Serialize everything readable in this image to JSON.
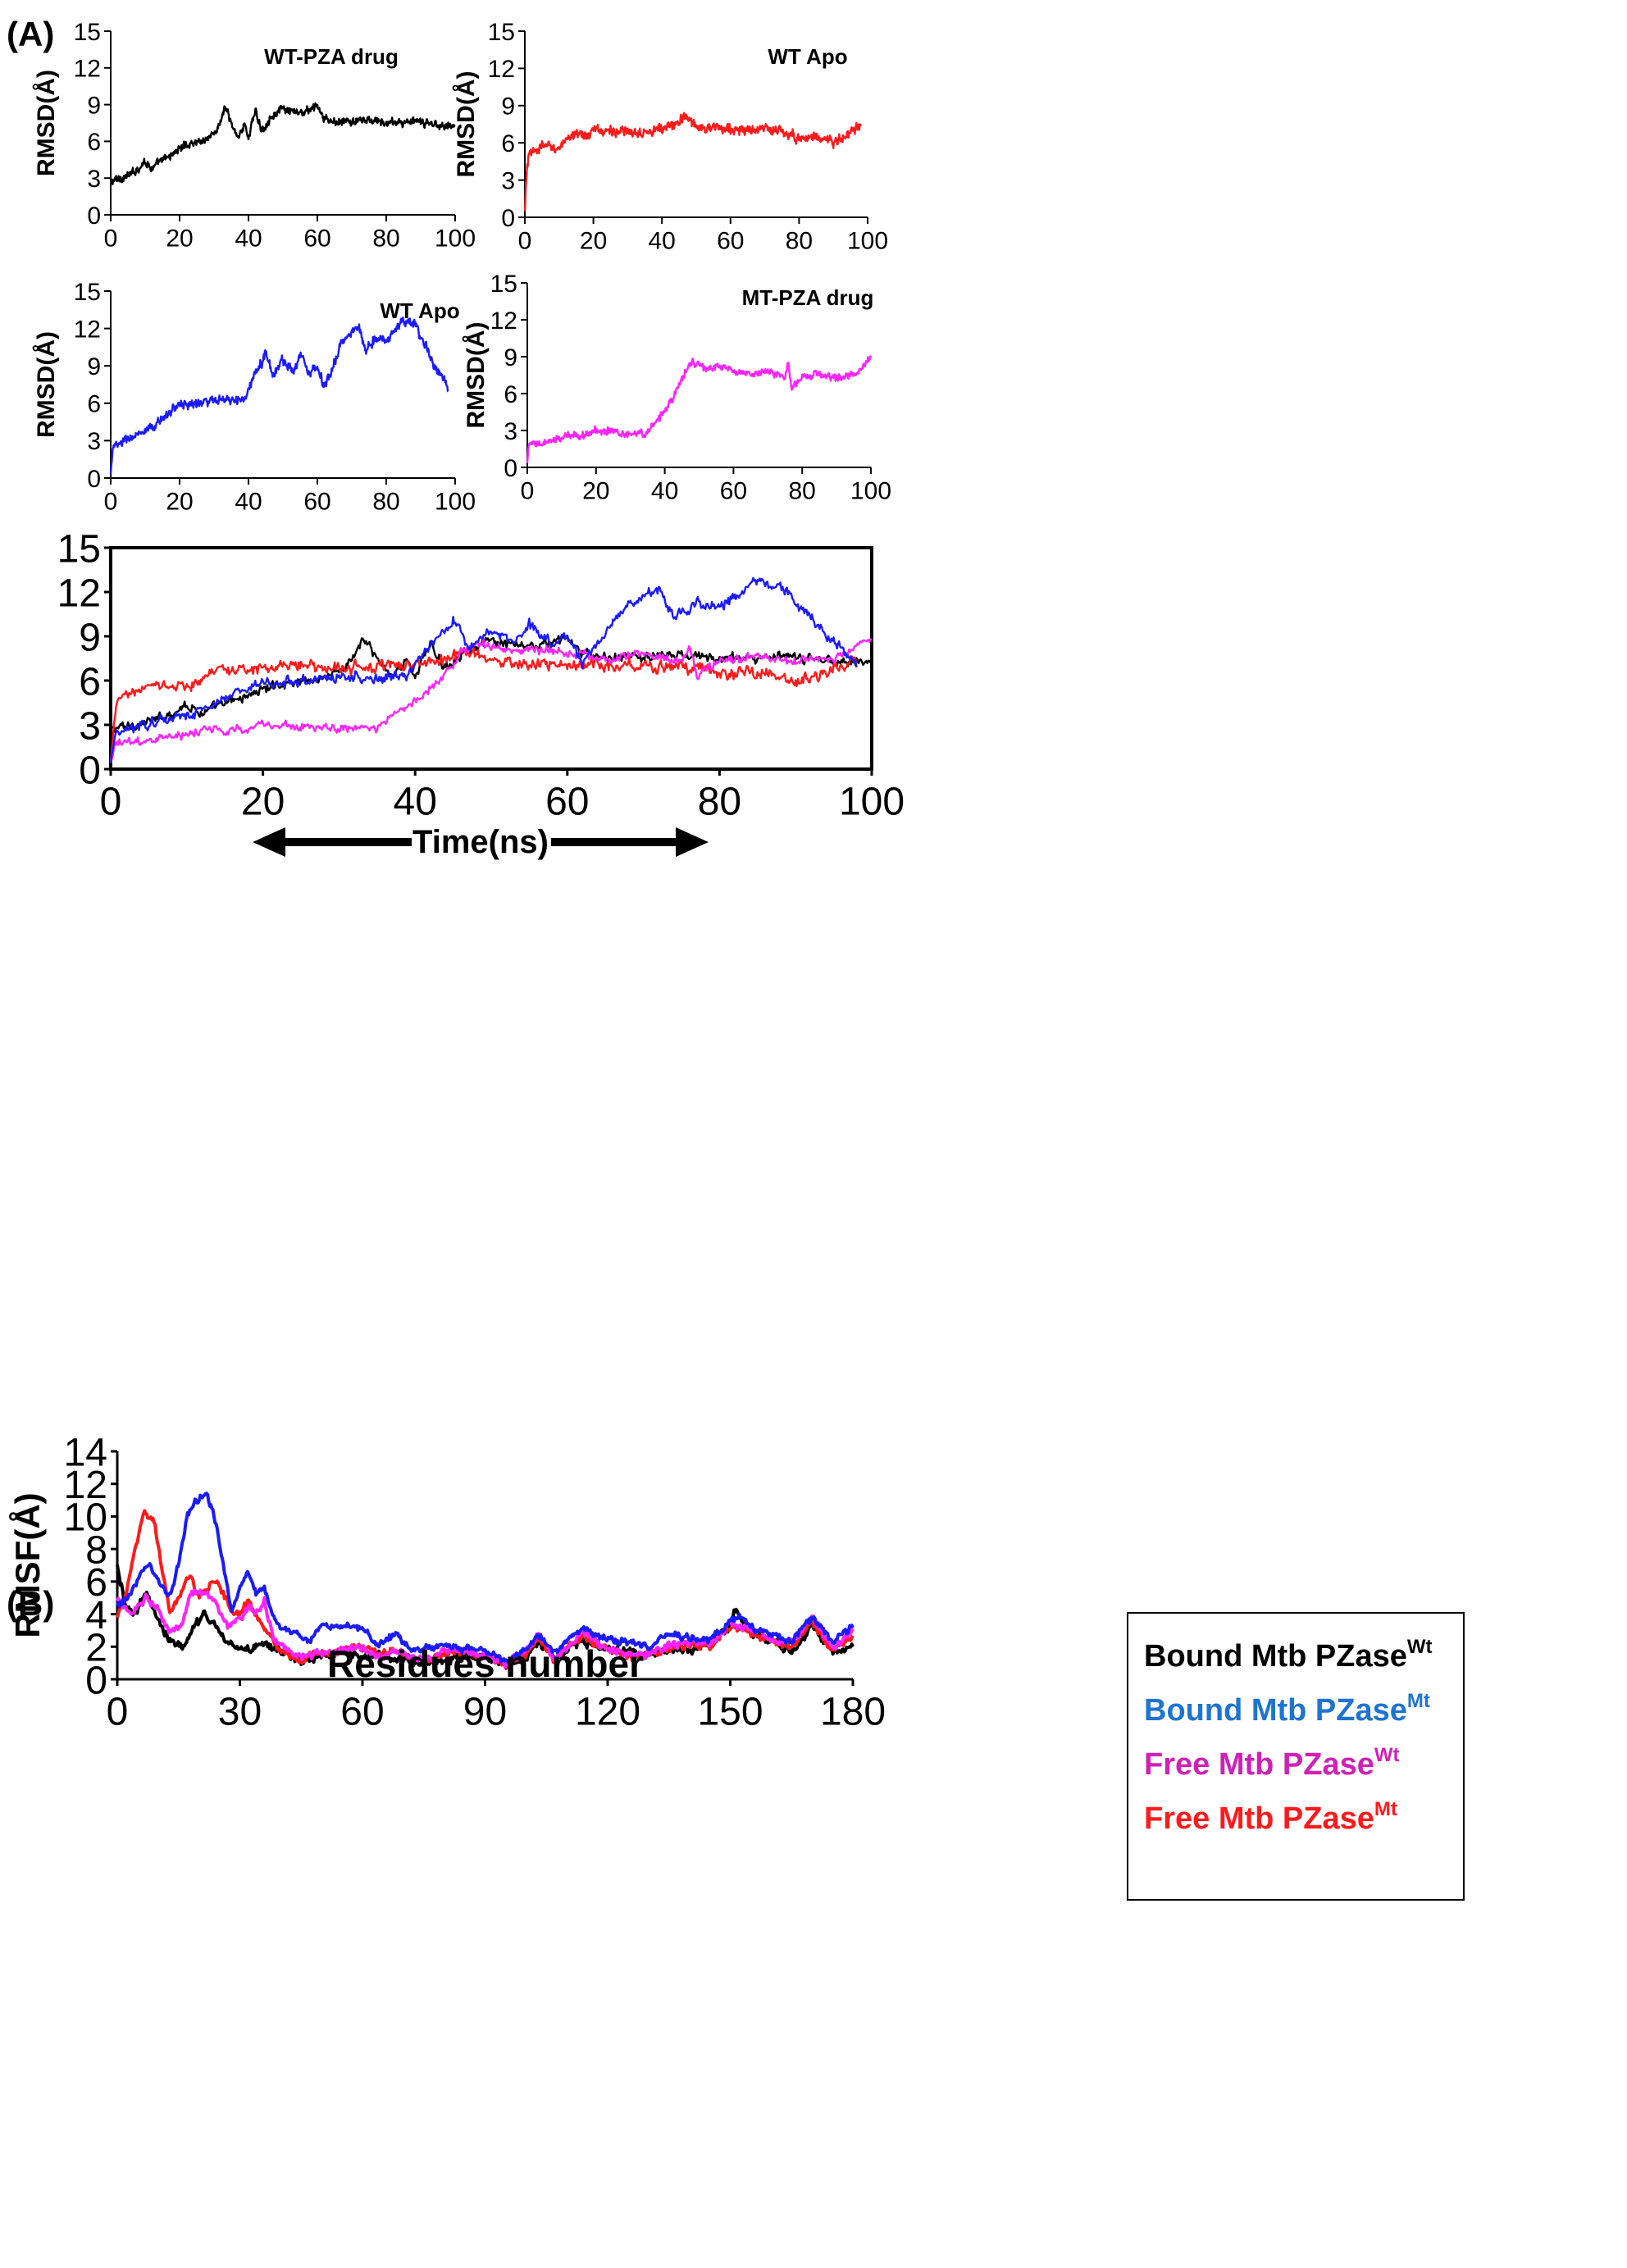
{
  "panels": {
    "a": "(A)",
    "b": "(B)"
  },
  "colors": {
    "black": "#000000",
    "red": "#ff1a1a",
    "blue": "#1a1aff",
    "magenta": "#ff22ff",
    "legend_blue": "#1e74d2",
    "legend_magenta": "#d020b8",
    "legend_red": "#ff1a1a"
  },
  "chart_data": [
    {
      "id": "rmsd-wt-pza",
      "type": "line",
      "annotation": "WT-PZA drug",
      "ylabel": "RMSD(Å)",
      "xlim": [
        0,
        100
      ],
      "ylim": [
        0,
        15
      ],
      "xticks": [
        "0",
        "20",
        "40",
        "60",
        "80",
        "100"
      ],
      "yticks": [
        "0",
        "3",
        "6",
        "9",
        "12",
        "15"
      ],
      "series": [
        {
          "color": "#000000",
          "noise": 0.45,
          "x": [
            0,
            3,
            6,
            9,
            10,
            12,
            15,
            18,
            21,
            24,
            27,
            30,
            32,
            33,
            34,
            35,
            36,
            37,
            38,
            39,
            40,
            41,
            42,
            43,
            44,
            45,
            46,
            48,
            50,
            52,
            55,
            58,
            60,
            62,
            65,
            70,
            75,
            80,
            85,
            90,
            95,
            100
          ],
          "y": [
            2.7,
            3.0,
            3.3,
            4.1,
            4.4,
            3.8,
            4.4,
            5.0,
            5.6,
            5.9,
            6.1,
            6.6,
            7.6,
            8.8,
            8.2,
            7.4,
            6.8,
            6.5,
            6.9,
            7.3,
            6.3,
            7.5,
            8.4,
            7.6,
            6.9,
            7.3,
            7.9,
            8.3,
            8.6,
            8.4,
            8.3,
            8.6,
            8.9,
            7.8,
            7.6,
            7.6,
            7.7,
            7.5,
            7.6,
            7.5,
            7.4,
            7.2
          ]
        }
      ]
    },
    {
      "id": "rmsd-wt-apo-red",
      "type": "line",
      "annotation": "WT Apo",
      "ylabel": "RMSD(Å)",
      "xlim": [
        0,
        100
      ],
      "ylim": [
        0,
        15
      ],
      "xticks": [
        "0",
        "20",
        "40",
        "60",
        "80",
        "100"
      ],
      "yticks": [
        "0",
        "3",
        "6",
        "9",
        "12",
        "15"
      ],
      "series": [
        {
          "color": "#ff1a1a",
          "noise": 0.55,
          "x": [
            0,
            0.5,
            1,
            3,
            6,
            10,
            13,
            15,
            18,
            20,
            25,
            30,
            35,
            40,
            44,
            47,
            50,
            55,
            60,
            65,
            70,
            75,
            80,
            85,
            88,
            90,
            93,
            95,
            97,
            98
          ],
          "y": [
            0.3,
            3.5,
            4.8,
            5.4,
            5.8,
            5.6,
            6.2,
            7.0,
            6.5,
            7.0,
            7.0,
            6.8,
            7.0,
            7.1,
            7.5,
            8.1,
            7.4,
            7.2,
            7.1,
            7.0,
            7.1,
            6.9,
            6.4,
            6.5,
            6.3,
            6.0,
            6.4,
            6.8,
            7.3,
            7.4
          ]
        }
      ]
    },
    {
      "id": "rmsd-wt-apo-blue",
      "type": "line",
      "annotation": "WT Apo",
      "ylabel": "RMSD(Å)",
      "xlim": [
        0,
        100
      ],
      "ylim": [
        0,
        15
      ],
      "xticks": [
        "0",
        "20",
        "40",
        "60",
        "80",
        "100"
      ],
      "yticks": [
        "0",
        "3",
        "6",
        "9",
        "12",
        "15"
      ],
      "series": [
        {
          "color": "#1a1aff",
          "noise": 0.5,
          "x": [
            0,
            0.5,
            3,
            6,
            10,
            13,
            16,
            20,
            25,
            30,
            35,
            39,
            41,
            44,
            45,
            47,
            50,
            53,
            55,
            58,
            60,
            62,
            64,
            67,
            70,
            72,
            74,
            77,
            80,
            83,
            85,
            87,
            88,
            90,
            92,
            94,
            96,
            98
          ],
          "y": [
            0.2,
            2.4,
            2.8,
            3.3,
            3.6,
            4.2,
            5.1,
            5.9,
            6.0,
            6.2,
            6.2,
            6.3,
            7.8,
            9.3,
            10.3,
            8.2,
            9.5,
            8.6,
            9.9,
            8.4,
            9.1,
            7.3,
            8.5,
            10.8,
            11.7,
            12.2,
            10.3,
            11.3,
            11.0,
            12.0,
            12.7,
            12.3,
            12.6,
            11.2,
            10.4,
            8.9,
            8.3,
            7.0
          ]
        }
      ]
    },
    {
      "id": "rmsd-mt-pza",
      "type": "line",
      "annotation": "MT-PZA drug",
      "ylabel": "RMSD(Å)",
      "xlim": [
        0,
        100
      ],
      "ylim": [
        0,
        15
      ],
      "xticks": [
        "0",
        "20",
        "40",
        "60",
        "80",
        "100"
      ],
      "yticks": [
        "0",
        "3",
        "6",
        "9",
        "12",
        "15"
      ],
      "series": [
        {
          "color": "#ff22ff",
          "noise": 0.4,
          "x": [
            0,
            0.5,
            3,
            6,
            10,
            13,
            16,
            20,
            25,
            30,
            35,
            37,
            40,
            42,
            44,
            46,
            48,
            50,
            53,
            56,
            60,
            65,
            70,
            75,
            76,
            77,
            80,
            85,
            90,
            95,
            100
          ],
          "y": [
            0.3,
            1.8,
            1.9,
            2.0,
            2.4,
            2.7,
            2.6,
            3.0,
            2.9,
            2.7,
            2.8,
            3.6,
            4.6,
            5.4,
            6.5,
            7.9,
            8.5,
            8.3,
            8.0,
            8.2,
            7.8,
            7.5,
            7.9,
            7.3,
            8.4,
            6.3,
            7.3,
            7.6,
            7.3,
            7.5,
            8.9
          ]
        }
      ]
    },
    {
      "id": "rmsd-combined",
      "type": "line",
      "xlabel": "Time(ns)",
      "xlim": [
        0,
        100
      ],
      "ylim": [
        0,
        15
      ],
      "xticks": [
        "0",
        "20",
        "40",
        "60",
        "80",
        "100"
      ],
      "yticks": [
        "0",
        "3",
        "6",
        "9",
        "12",
        "15"
      ],
      "series": [
        {
          "color": "#000000",
          "ref": 0
        },
        {
          "color": "#ff1a1a",
          "ref": 1
        },
        {
          "color": "#ff22ff",
          "ref": 3
        },
        {
          "color": "#1a1aff",
          "ref": 2
        }
      ]
    },
    {
      "id": "rmsf",
      "type": "line",
      "xlabel": "Residues number",
      "ylabel": "RMSF(Å)",
      "xlim": [
        0,
        180
      ],
      "ylim": [
        0,
        14
      ],
      "xticks": [
        "0",
        "30",
        "60",
        "90",
        "120",
        "150",
        "180"
      ],
      "yticks": [
        "0",
        "2",
        "4",
        "6",
        "8",
        "10",
        "12",
        "14"
      ],
      "legend": [
        {
          "label": "Bound Mtb PZase",
          "sup": "Wt",
          "color": "#000000"
        },
        {
          "label": "Bound Mtb PZase",
          "sup": "Mt",
          "color": "#1e74d2"
        },
        {
          "label": "Free Mtb PZase",
          "sup": "Wt",
          "color": "#d020b8"
        },
        {
          "label": "Free Mtb PZase",
          "sup": "Mt",
          "color": "#ff1a1a"
        }
      ],
      "series": [
        {
          "color": "#000000",
          "noise": 0.35,
          "x": [
            0,
            2,
            4,
            7,
            10,
            13,
            16,
            19,
            21,
            24,
            27,
            30,
            33,
            36,
            40,
            45,
            50,
            55,
            60,
            65,
            68,
            72,
            76,
            80,
            85,
            90,
            95,
            100,
            103,
            107,
            110,
            114,
            118,
            122,
            126,
            130,
            135,
            140,
            145,
            150,
            151,
            155,
            160,
            165,
            170,
            175,
            180
          ],
          "y": [
            6.8,
            4.6,
            3.8,
            5.3,
            3.6,
            2.3,
            2.0,
            3.2,
            4.0,
            3.2,
            2.2,
            2.0,
            1.8,
            2.2,
            1.6,
            1.1,
            1.5,
            1.6,
            1.5,
            1.4,
            1.2,
            1.1,
            0.8,
            1.3,
            1.4,
            1.5,
            0.9,
            1.3,
            2.4,
            1.2,
            1.8,
            2.4,
            1.9,
            1.9,
            1.6,
            1.5,
            1.8,
            1.9,
            2.3,
            3.2,
            4.4,
            2.8,
            2.3,
            1.7,
            3.3,
            1.5,
            2.1
          ]
        },
        {
          "color": "#ff1a1a",
          "noise": 0.3,
          "x": [
            0,
            2,
            4,
            6,
            7,
            9,
            11,
            13,
            15,
            17,
            18,
            20,
            22,
            24,
            26,
            28,
            30,
            32,
            34,
            36,
            40,
            44,
            50,
            55,
            60,
            65,
            68,
            72,
            76,
            80,
            85,
            90,
            95,
            100,
            103,
            107,
            110,
            114,
            118,
            122,
            126,
            130,
            135,
            140,
            145,
            150,
            155,
            160,
            165,
            170,
            175,
            180
          ],
          "y": [
            3.8,
            5.2,
            7.5,
            9.8,
            10.2,
            9.7,
            6.8,
            4.1,
            4.8,
            6.1,
            6.2,
            5.0,
            5.5,
            6.1,
            5.3,
            4.1,
            4.0,
            4.8,
            3.9,
            3.1,
            1.8,
            1.2,
            1.6,
            1.7,
            2.0,
            1.5,
            1.9,
            1.2,
            1.2,
            1.6,
            1.7,
            1.4,
            0.9,
            1.5,
            2.6,
            1.1,
            1.9,
            2.6,
            2.0,
            1.8,
            1.3,
            1.5,
            1.9,
            2.1,
            2.0,
            3.3,
            2.8,
            2.4,
            1.8,
            3.6,
            1.7,
            2.7
          ]
        },
        {
          "color": "#ff22ff",
          "noise": 0.3,
          "x": [
            0,
            2,
            4,
            7,
            10,
            13,
            16,
            18,
            20,
            22,
            24,
            27,
            30,
            32,
            34,
            36,
            38,
            40,
            44,
            50,
            55,
            60,
            65,
            68,
            72,
            76,
            80,
            85,
            90,
            95,
            100,
            103,
            107,
            110,
            114,
            118,
            122,
            126,
            130,
            135,
            140,
            145,
            150,
            155,
            160,
            165,
            170,
            175,
            180
          ],
          "y": [
            4.8,
            4.4,
            4.1,
            5.0,
            4.3,
            2.9,
            3.4,
            5.3,
            5.4,
            5.2,
            4.7,
            3.2,
            3.6,
            4.5,
            4.1,
            4.8,
            2.7,
            2.0,
            1.3,
            1.6,
            1.8,
            2.0,
            1.3,
            1.8,
            1.4,
            1.2,
            1.7,
            1.8,
            1.4,
            0.9,
            1.7,
            2.7,
            1.3,
            1.9,
            2.9,
            2.1,
            1.7,
            1.5,
            1.5,
            2.1,
            2.2,
            2.1,
            3.4,
            3.1,
            2.6,
            2.1,
            3.9,
            1.9,
            2.9
          ]
        },
        {
          "color": "#1a1aff",
          "noise": 0.3,
          "x": [
            0,
            3,
            6,
            8,
            11,
            13,
            15,
            17,
            19,
            21,
            22,
            24,
            26,
            28,
            30,
            32,
            34,
            36,
            38,
            40,
            43,
            47,
            50,
            55,
            60,
            64,
            68,
            72,
            76,
            80,
            85,
            90,
            95,
            100,
            103,
            107,
            110,
            114,
            118,
            122,
            126,
            130,
            135,
            140,
            145,
            150,
            152,
            156,
            160,
            165,
            170,
            175,
            180
          ],
          "y": [
            4.5,
            5.0,
            6.6,
            7.0,
            5.5,
            5.1,
            7.0,
            10.0,
            11.0,
            11.2,
            11.3,
            9.8,
            7.0,
            3.9,
            5.6,
            6.6,
            5.2,
            5.6,
            4.1,
            3.1,
            2.9,
            2.5,
            3.4,
            3.2,
            3.3,
            2.0,
            2.9,
            1.6,
            1.9,
            2.0,
            1.9,
            1.8,
            1.1,
            1.8,
            2.7,
            1.6,
            2.4,
            3.1,
            2.7,
            2.3,
            2.3,
            2.0,
            2.8,
            2.5,
            2.4,
            3.6,
            4.0,
            3.0,
            2.9,
            2.4,
            3.8,
            2.4,
            3.3
          ]
        }
      ]
    }
  ]
}
